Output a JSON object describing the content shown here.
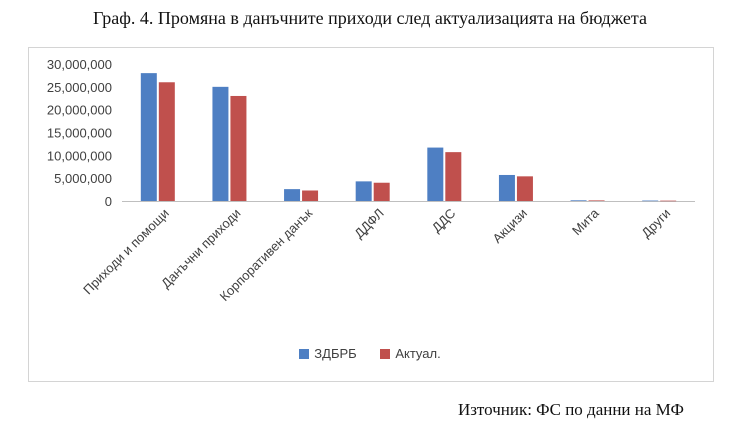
{
  "title": "Граф. 4. Промяна в данъчните приходи след актуализацията на бюджета",
  "source": "Източник: ФС по данни на МФ",
  "colors": {
    "series1": "#4e7fc3",
    "series2": "#c0504d",
    "axis": "#bfbfbf",
    "text": "#404040"
  },
  "chart_data": {
    "type": "bar",
    "categories": [
      "Приходи и помощи",
      "Данъчни приходи",
      "Корпоративен данък",
      "ДДФЛ",
      "ДДС",
      "Акцизи",
      "Мита",
      "Други"
    ],
    "series": [
      {
        "name": "ЗДБРБ",
        "values": [
          28000000,
          25000000,
          2600000,
          4300000,
          11700000,
          5700000,
          150000,
          100000
        ]
      },
      {
        "name": "Актуал.",
        "values": [
          26000000,
          23000000,
          2300000,
          4000000,
          10700000,
          5400000,
          130000,
          80000
        ]
      }
    ],
    "ylim": [
      0,
      30000000
    ],
    "yticks": [
      "0",
      "5,000,000",
      "10,000,000",
      "15,000,000",
      "20,000,000",
      "25,000,000",
      "30,000,000"
    ],
    "grid": false,
    "legend": "bottom"
  }
}
